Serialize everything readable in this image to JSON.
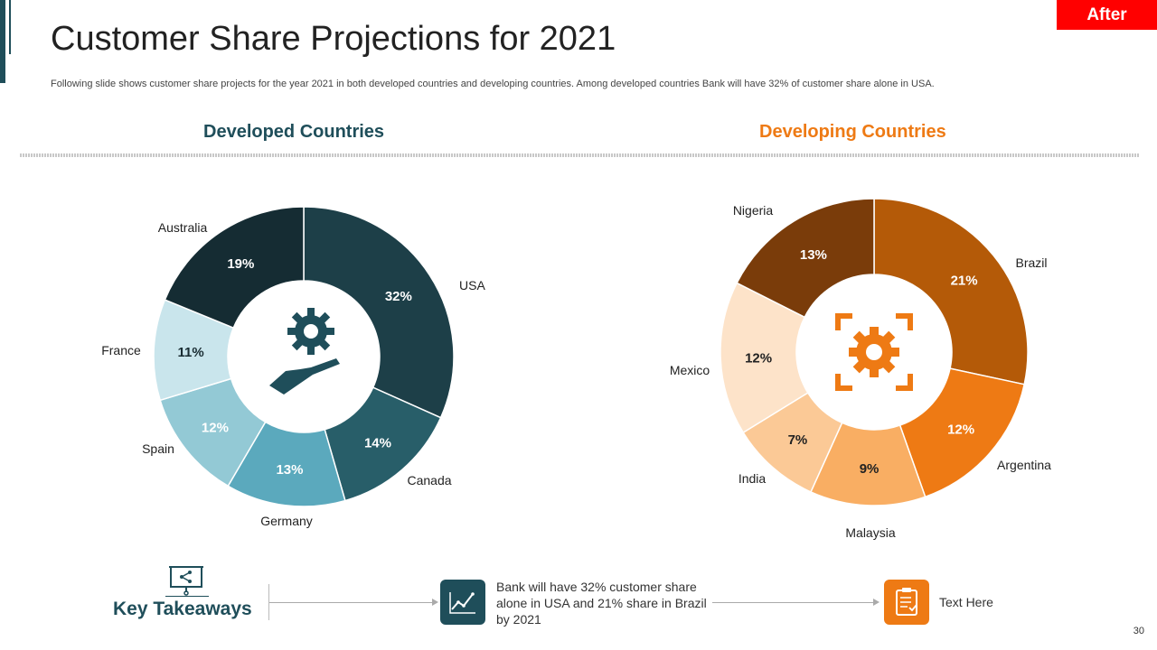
{
  "badge": "After",
  "title": "Customer Share Projections for 2021",
  "subtitle": "Following slide shows customer share projects for the year 2021 in both developed countries and developing countries. Among developed countries Bank will have 32% of customer share alone in USA.",
  "chart_data": [
    {
      "type": "pie",
      "title": "Developed Countries",
      "categories": [
        "USA",
        "Canada",
        "Germany",
        "Spain",
        "France",
        "Australia"
      ],
      "values": [
        32,
        14,
        13,
        12,
        11,
        19
      ],
      "labels": [
        "32%",
        "14%",
        "13%",
        "12%",
        "11%",
        "19%"
      ],
      "colors": [
        "#1d3f48",
        "#285e69",
        "#5ba9bd",
        "#93c9d5",
        "#c9e5ec",
        "#152c33"
      ],
      "label_colors": [
        "#ffffff",
        "#ffffff",
        "#ffffff",
        "#ffffff",
        "#1a2d33",
        "#ffffff"
      ],
      "center_icon": "gear-hand-icon"
    },
    {
      "type": "pie",
      "title": "Developing Countries",
      "categories": [
        "Brazil",
        "Argentina",
        "Malaysia",
        "India",
        "Mexico",
        "Nigeria"
      ],
      "values": [
        21,
        12,
        9,
        7,
        12,
        13
      ],
      "labels": [
        "21%",
        "12%",
        "9%",
        "7%",
        "12%",
        "13%"
      ],
      "colors": [
        "#b45a08",
        "#ee7a14",
        "#f9ae63",
        "#fbc996",
        "#fde3c9",
        "#7a3c0a"
      ],
      "label_colors": [
        "#ffffff",
        "#ffffff",
        "#222222",
        "#222222",
        "#222222",
        "#ffffff"
      ],
      "center_icon": "gear-frame-icon"
    }
  ],
  "key_takeaways": {
    "label": "Key Takeaways",
    "icon": "presentation-board-icon",
    "items": [
      {
        "icon": "line-chart-icon",
        "text": "Bank will have 32% customer share alone in USA and 21% share in Brazil by 2021",
        "color": "#1f4e5a"
      },
      {
        "icon": "clipboard-icon",
        "text": "Text Here",
        "color": "#ee7a14"
      }
    ]
  },
  "page_number": "30"
}
